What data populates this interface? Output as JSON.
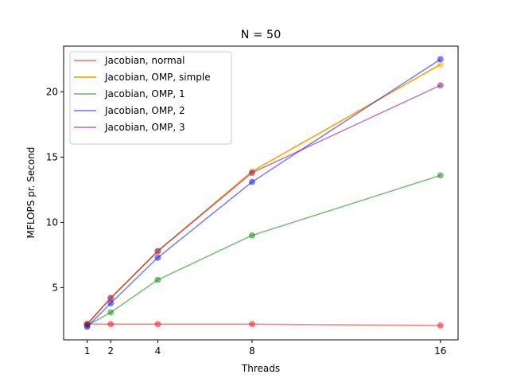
{
  "chart_data": {
    "type": "line",
    "title": "N = 50",
    "xlabel": "Threads",
    "ylabel": "MFLOPS pr. Second",
    "x": [
      1,
      2,
      4,
      8,
      16
    ],
    "xticks": [
      1,
      2,
      4,
      8,
      16
    ],
    "yticks": [
      5,
      10,
      15,
      20
    ],
    "xlim": [
      0.0,
      16.75
    ],
    "ylim": [
      1.0,
      23.5
    ],
    "grid": false,
    "legend": "upper-left",
    "series": [
      {
        "name": "Jacobian, normal",
        "values": [
          2.2,
          2.2,
          2.2,
          2.2,
          2.1
        ],
        "color": "#ff0000",
        "alpha": 0.5
      },
      {
        "name": "Jacobian, OMP, simple",
        "values": [
          2.2,
          4.2,
          7.8,
          13.9,
          22.1
        ],
        "color": "#ffa500",
        "alpha": 1.0
      },
      {
        "name": "Jacobian, OMP, 1",
        "values": [
          2.1,
          3.1,
          5.6,
          9.0,
          13.6
        ],
        "color": "#008000",
        "alpha": 0.5
      },
      {
        "name": "Jacobian, OMP, 2",
        "values": [
          2.0,
          3.8,
          7.3,
          13.1,
          22.5
        ],
        "color": "#0000ff",
        "alpha": 0.5
      },
      {
        "name": "Jacobian, OMP, 3",
        "values": [
          2.2,
          4.2,
          7.8,
          13.8,
          20.5
        ],
        "color": "#800080",
        "alpha": 0.5
      }
    ]
  }
}
